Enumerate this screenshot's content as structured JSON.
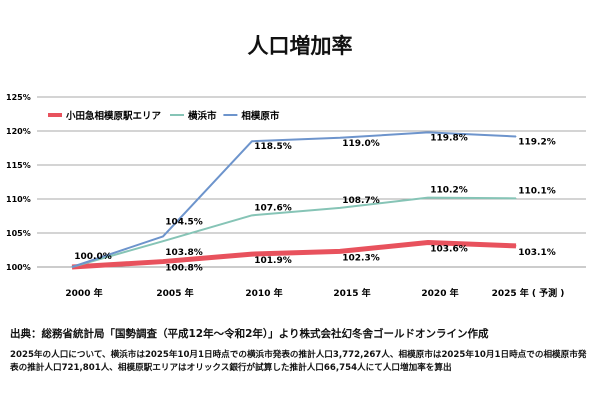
{
  "chart_data": {
    "type": "line",
    "title": "人口増加率",
    "categories": [
      "2000 年",
      "2005 年",
      "2010 年",
      "2015 年",
      "2020 年",
      "2025 年 ( 予測 )"
    ],
    "y_ticks": [
      "100%",
      "105%",
      "110%",
      "115%",
      "120%",
      "125%"
    ],
    "ylim": [
      100,
      125
    ],
    "grid": true,
    "legend": "top-left",
    "series": [
      {
        "name": "小田急相模原駅エリア",
        "color": "#e8525d",
        "values": [
          100.0,
          100.8,
          101.9,
          102.3,
          103.6,
          103.1
        ],
        "labels": [
          "",
          "100.8%",
          "101.9%",
          "102.3%",
          "103.6%",
          "103.1%"
        ]
      },
      {
        "name": "横浜市",
        "color": "#86c4b6",
        "values": [
          100.0,
          103.8,
          107.6,
          108.7,
          110.2,
          110.1
        ],
        "labels": [
          "",
          "103.8%",
          "107.6%",
          "108.7%",
          "110.2%",
          "110.1%"
        ]
      },
      {
        "name": "相模原市",
        "color": "#6d94cc",
        "values": [
          100.0,
          104.5,
          118.5,
          119.0,
          119.8,
          119.2
        ],
        "labels": [
          "100.0%",
          "104.5%",
          "118.5%",
          "119.0%",
          "119.8%",
          "119.2%"
        ]
      }
    ]
  },
  "source": "出典：総務省統計局「国勢調査（平成12年～令和2年）」より株式会社幻冬舎ゴールドオンライン作成",
  "note": "2025年の人口について、横浜市は2025年10月1日時点での横浜市発表の推計人口3,772,267人、相模原市は2025年10月1日時点での相模原市発表の推計人口721,801人、相模原駅エリアはオリックス銀行が試算した推計人口66,754人にて人口増加率を算出"
}
